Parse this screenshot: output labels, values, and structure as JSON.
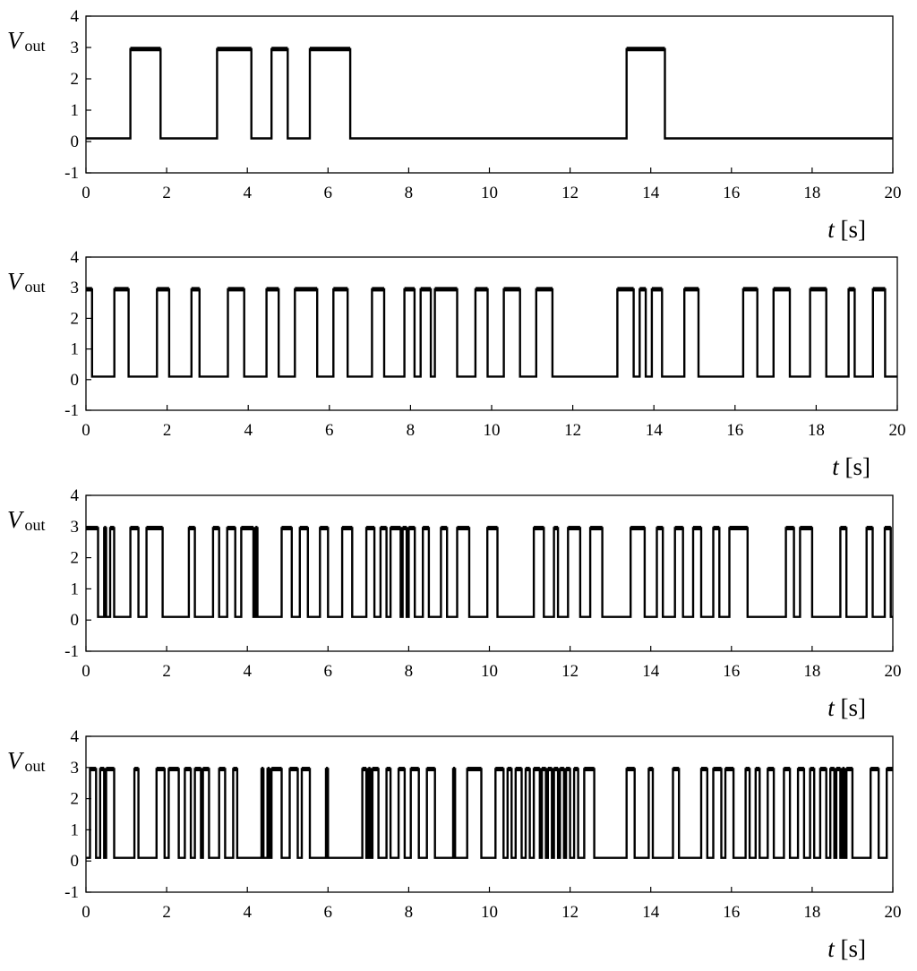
{
  "chart_data": [
    {
      "type": "line",
      "ylabel": "V",
      "ylabel_sub": "out",
      "xlabel": "t",
      "xlabel_unit": " [s]",
      "xlim": [
        0,
        20
      ],
      "ylim": [
        -1,
        4
      ],
      "x_ticks": [
        "0",
        "2",
        "4",
        "6",
        "8",
        "10",
        "12",
        "14",
        "16",
        "18",
        "20"
      ],
      "y_ticks": [
        "-1",
        "0",
        "1",
        "2",
        "3",
        "4"
      ],
      "grid": false,
      "levels": {
        "low": 0.1,
        "high": 2.95
      },
      "high_intervals": [
        [
          1.1,
          1.85
        ],
        [
          3.25,
          4.1
        ],
        [
          4.6,
          5.0
        ],
        [
          5.55,
          6.55
        ],
        [
          13.4,
          14.35
        ]
      ]
    },
    {
      "type": "line",
      "ylabel": "V",
      "ylabel_sub": "out",
      "xlabel": "t",
      "xlabel_unit": " [s]",
      "xlim": [
        0,
        20
      ],
      "ylim": [
        -1,
        4
      ],
      "x_ticks": [
        "0",
        "2",
        "4",
        "6",
        "8",
        "10",
        "12",
        "14",
        "16",
        "18",
        "20"
      ],
      "y_ticks": [
        "-1",
        "0",
        "1",
        "2",
        "3",
        "4"
      ],
      "grid": false,
      "levels": {
        "low": 0.1,
        "high": 2.95
      },
      "high_intervals": [
        [
          0.0,
          0.15
        ],
        [
          0.7,
          1.05
        ],
        [
          1.75,
          2.05
        ],
        [
          2.6,
          2.8
        ],
        [
          3.5,
          3.9
        ],
        [
          4.45,
          4.75
        ],
        [
          5.15,
          5.7
        ],
        [
          6.1,
          6.45
        ],
        [
          7.05,
          7.35
        ],
        [
          7.85,
          8.1
        ],
        [
          8.25,
          8.5
        ],
        [
          8.6,
          9.15
        ],
        [
          9.6,
          9.9
        ],
        [
          10.3,
          10.7
        ],
        [
          11.1,
          11.5
        ],
        [
          13.1,
          13.5
        ],
        [
          13.65,
          13.8
        ],
        [
          13.95,
          14.2
        ],
        [
          14.75,
          15.1
        ],
        [
          16.2,
          16.55
        ],
        [
          16.95,
          17.35
        ],
        [
          17.85,
          18.25
        ],
        [
          18.8,
          18.95
        ],
        [
          19.4,
          19.7
        ]
      ]
    },
    {
      "type": "line",
      "ylabel": "V",
      "ylabel_sub": "out",
      "xlabel": "t",
      "xlabel_unit": " [s]",
      "xlim": [
        0,
        20
      ],
      "ylim": [
        -1,
        4
      ],
      "x_ticks": [
        "0",
        "2",
        "4",
        "6",
        "8",
        "10",
        "12",
        "14",
        "16",
        "18",
        "20"
      ],
      "y_ticks": [
        "-1",
        "0",
        "1",
        "2",
        "3",
        "4"
      ],
      "grid": false,
      "levels": {
        "low": 0.1,
        "high": 2.95
      },
      "high_intervals": [
        [
          0.0,
          0.3
        ],
        [
          0.45,
          0.5
        ],
        [
          0.6,
          0.7
        ],
        [
          1.1,
          1.3
        ],
        [
          1.5,
          1.9
        ],
        [
          2.55,
          2.7
        ],
        [
          3.15,
          3.3
        ],
        [
          3.5,
          3.7
        ],
        [
          3.85,
          4.15
        ],
        [
          4.2,
          4.25
        ],
        [
          4.85,
          5.1
        ],
        [
          5.3,
          5.5
        ],
        [
          5.8,
          6.0
        ],
        [
          6.35,
          6.6
        ],
        [
          6.95,
          7.15
        ],
        [
          7.3,
          7.45
        ],
        [
          7.55,
          7.8
        ],
        [
          7.85,
          7.95
        ],
        [
          8.0,
          8.15
        ],
        [
          8.35,
          8.5
        ],
        [
          8.8,
          8.95
        ],
        [
          9.2,
          9.5
        ],
        [
          9.95,
          10.2
        ],
        [
          11.1,
          11.35
        ],
        [
          11.6,
          11.7
        ],
        [
          11.95,
          12.25
        ],
        [
          12.5,
          12.8
        ],
        [
          13.5,
          13.85
        ],
        [
          14.15,
          14.3
        ],
        [
          14.6,
          14.8
        ],
        [
          15.05,
          15.25
        ],
        [
          15.55,
          15.7
        ],
        [
          15.95,
          16.4
        ],
        [
          17.35,
          17.55
        ],
        [
          17.7,
          18.0
        ],
        [
          18.7,
          18.85
        ],
        [
          19.35,
          19.5
        ],
        [
          19.8,
          19.95
        ]
      ]
    },
    {
      "type": "line",
      "ylabel": "V",
      "ylabel_sub": "out",
      "xlabel": "t",
      "xlabel_unit": " [s]",
      "xlim": [
        0,
        20
      ],
      "ylim": [
        -1,
        4
      ],
      "x_ticks": [
        "0",
        "2",
        "4",
        "6",
        "8",
        "10",
        "12",
        "14",
        "16",
        "18",
        "20"
      ],
      "y_ticks": [
        "-1",
        "0",
        "1",
        "2",
        "3",
        "4"
      ],
      "grid": false,
      "levels": {
        "low": 0.1,
        "high": 2.95
      },
      "high_intervals": [
        [
          0.1,
          0.25
        ],
        [
          0.35,
          0.45
        ],
        [
          0.5,
          0.7
        ],
        [
          1.2,
          1.3
        ],
        [
          1.75,
          1.95
        ],
        [
          2.05,
          2.3
        ],
        [
          2.45,
          2.6
        ],
        [
          2.7,
          2.85
        ],
        [
          2.9,
          3.05
        ],
        [
          3.3,
          3.45
        ],
        [
          3.65,
          3.75
        ],
        [
          4.35,
          4.4
        ],
        [
          4.5,
          4.55
        ],
        [
          4.6,
          4.85
        ],
        [
          5.05,
          5.25
        ],
        [
          5.35,
          5.55
        ],
        [
          5.95,
          6.0
        ],
        [
          6.85,
          6.95
        ],
        [
          7.0,
          7.05
        ],
        [
          7.1,
          7.25
        ],
        [
          7.45,
          7.55
        ],
        [
          7.75,
          7.9
        ],
        [
          8.05,
          8.25
        ],
        [
          8.45,
          8.65
        ],
        [
          9.1,
          9.15
        ],
        [
          9.45,
          9.8
        ],
        [
          10.15,
          10.35
        ],
        [
          10.45,
          10.55
        ],
        [
          10.65,
          10.8
        ],
        [
          10.9,
          11.0
        ],
        [
          11.1,
          11.25
        ],
        [
          11.3,
          11.4
        ],
        [
          11.45,
          11.55
        ],
        [
          11.6,
          11.7
        ],
        [
          11.75,
          11.85
        ],
        [
          11.9,
          12.0
        ],
        [
          12.1,
          12.2
        ],
        [
          12.35,
          12.6
        ],
        [
          13.4,
          13.6
        ],
        [
          13.95,
          14.05
        ],
        [
          14.55,
          14.7
        ],
        [
          15.25,
          15.4
        ],
        [
          15.55,
          15.75
        ],
        [
          15.85,
          16.05
        ],
        [
          16.35,
          16.45
        ],
        [
          16.6,
          16.7
        ],
        [
          16.9,
          17.05
        ],
        [
          17.3,
          17.45
        ],
        [
          17.65,
          17.8
        ],
        [
          17.95,
          18.05
        ],
        [
          18.2,
          18.35
        ],
        [
          18.45,
          18.55
        ],
        [
          18.6,
          18.7
        ],
        [
          18.75,
          18.8
        ],
        [
          18.85,
          19.0
        ],
        [
          19.45,
          19.65
        ],
        [
          19.85,
          20.0
        ]
      ]
    }
  ]
}
